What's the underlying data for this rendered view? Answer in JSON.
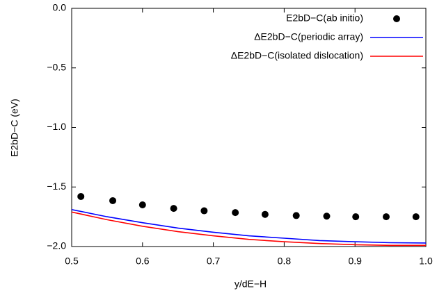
{
  "chart_data": {
    "type": "scatter_line",
    "xlabel": "y/dE−H",
    "ylabel": "E2bD−C (eV)",
    "xlim": [
      0.5,
      1.0
    ],
    "ylim": [
      -2.0,
      0.0
    ],
    "xticks": [
      0.5,
      0.6,
      0.7,
      0.8,
      0.9,
      {
        "value": 1.0,
        "label": "1.0"
      }
    ],
    "yticks": [
      {
        "value": 0.0,
        "label": "0.0"
      },
      {
        "value": -0.5,
        "label": "−0.5"
      },
      {
        "value": -1.0,
        "label": "−1.0"
      },
      {
        "value": -1.5,
        "label": "−1.5"
      },
      {
        "value": -2.0,
        "label": "−2.0"
      }
    ],
    "legend": "upper right",
    "series": [
      {
        "name": "E2bD−C(ab initio)",
        "kind": "points",
        "color": "#000000",
        "x": [
          0.513,
          0.558,
          0.6,
          0.644,
          0.687,
          0.731,
          0.773,
          0.817,
          0.86,
          0.901,
          0.944,
          0.986
        ],
        "values": [
          -1.58,
          -1.615,
          -1.65,
          -1.68,
          -1.7,
          -1.715,
          -1.73,
          -1.74,
          -1.745,
          -1.75,
          -1.75,
          -1.75
        ]
      },
      {
        "name": "ΔE2bD−C(periodic array)",
        "kind": "line",
        "color": "#0000ff",
        "x": [
          0.5,
          0.55,
          0.6,
          0.65,
          0.7,
          0.75,
          0.8,
          0.85,
          0.9,
          0.95,
          1.0
        ],
        "values": [
          -1.69,
          -1.75,
          -1.8,
          -1.845,
          -1.88,
          -1.91,
          -1.93,
          -1.95,
          -1.96,
          -1.968,
          -1.97
        ]
      },
      {
        "name": "ΔE2bD−C(isolated dislocation)",
        "kind": "line",
        "color": "#ff0000",
        "x": [
          0.5,
          0.55,
          0.6,
          0.65,
          0.7,
          0.75,
          0.8,
          0.85,
          0.9,
          0.95,
          1.0
        ],
        "values": [
          -1.71,
          -1.775,
          -1.83,
          -1.875,
          -1.91,
          -1.94,
          -1.96,
          -1.975,
          -1.985,
          -1.99,
          -1.99
        ]
      }
    ]
  }
}
